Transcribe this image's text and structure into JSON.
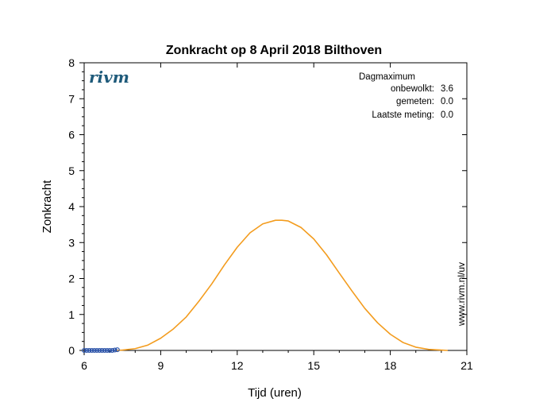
{
  "chart_data": {
    "type": "line",
    "title": "Zonkracht op 8 April 2018 Bilthoven",
    "xlabel": "Tijd (uren)",
    "ylabel": "Zonkracht",
    "xlim": [
      6,
      21
    ],
    "ylim": [
      0,
      8
    ],
    "x_ticks": [
      6,
      9,
      12,
      15,
      18,
      21
    ],
    "y_ticks": [
      0,
      1,
      2,
      3,
      4,
      5,
      6,
      7,
      8
    ],
    "grid": false,
    "series": [
      {
        "color": "#f39c1e",
        "x": [
          7.25,
          7.5,
          8.0,
          8.5,
          9.0,
          9.5,
          10.0,
          10.5,
          11.0,
          11.5,
          12.0,
          12.5,
          13.0,
          13.5,
          13.75,
          14.0,
          14.5,
          15.0,
          15.5,
          16.0,
          16.5,
          17.0,
          17.5,
          18.0,
          18.5,
          19.0,
          19.5,
          20.0,
          20.25
        ],
        "y": [
          0.0,
          0.01,
          0.05,
          0.15,
          0.34,
          0.6,
          0.93,
          1.37,
          1.85,
          2.38,
          2.87,
          3.27,
          3.52,
          3.62,
          3.62,
          3.6,
          3.42,
          3.1,
          2.66,
          2.15,
          1.65,
          1.17,
          0.77,
          0.45,
          0.22,
          0.09,
          0.03,
          0.01,
          0.0
        ]
      },
      {
        "color": "#2a52a8",
        "marker": "circle",
        "x": [
          6.0,
          6.1,
          6.2,
          6.3,
          6.4,
          6.5,
          6.6,
          6.7,
          6.8,
          6.9,
          7.0,
          7.1,
          7.2,
          7.3
        ],
        "y": [
          0,
          0,
          0,
          0,
          0,
          0,
          0,
          0,
          0,
          0,
          0,
          0,
          0.01,
          0.02
        ]
      }
    ]
  },
  "logo": {
    "text": "rivm",
    "color": "#1e5a7a"
  },
  "info": {
    "heading": "Dagmaximum",
    "rows": [
      {
        "label": "onbewolkt:",
        "value": "3.6"
      },
      {
        "label": "gemeten:",
        "value": "0.0"
      },
      {
        "label": "Laatste meting:",
        "value": "0.0"
      }
    ]
  },
  "side_note": "www.rivm.nl/uv"
}
